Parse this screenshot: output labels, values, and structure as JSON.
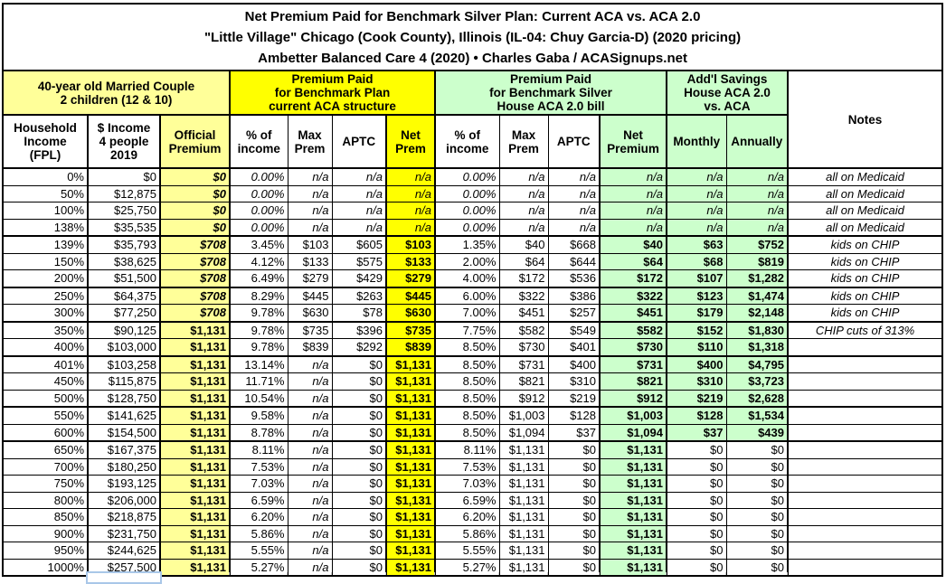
{
  "title": {
    "line1": "Net Premium Paid for Benchmark Silver Plan: Current ACA vs. ACA 2.0",
    "line2": "\"Little Village\" Chicago (Cook County), Illinois (IL-04: Chuy Garcia-D) (2020 pricing)",
    "line3": "Ambetter Balanced Care 4 (2020) • Charles Gaba / ACASignups.net"
  },
  "header": {
    "household_group": "40-year old Married Couple\n2 children (12 & 10)",
    "aca_group": "Premium Paid\nfor Benchmark Plan\ncurrent ACA structure",
    "aca2_group": "Premium Paid\nfor Benchmark Silver\nHouse ACA 2.0 bill",
    "savings_group": "Add'l Savings\nHouse ACA 2.0\nvs. ACA",
    "notes_label": "Notes",
    "columns": [
      "Household\nIncome\n(FPL)",
      "$ Income\n4 people\n2019",
      "Official\nPremium",
      "% of\nincome",
      "Max\nPrem",
      "APTC",
      "Net\nPrem",
      "% of\nincome",
      "Max\nPrem",
      "APTC",
      "Net\nPremium",
      "Monthly",
      "Annually"
    ]
  },
  "colors": {
    "bright_yellow": "#FFFF00",
    "light_yellow": "#FFFF99",
    "light_green": "#CCFFCC",
    "grid_black": "#000000",
    "selection_blue": "#A9C7E8"
  },
  "rows": [
    {
      "fpl": "0%",
      "income": "$0",
      "official": "$0",
      "officialItalic": true,
      "aca": [
        "0.00%",
        "n/a",
        "n/a",
        "n/a"
      ],
      "aca2": [
        "0.00%",
        "n/a",
        "n/a",
        "n/a"
      ],
      "monthly": "n/a",
      "annually": "n/a",
      "note": "all on Medicaid"
    },
    {
      "fpl": "50%",
      "income": "$12,875",
      "official": "$0",
      "officialItalic": true,
      "aca": [
        "0.00%",
        "n/a",
        "n/a",
        "n/a"
      ],
      "aca2": [
        "0.00%",
        "n/a",
        "n/a",
        "n/a"
      ],
      "monthly": "n/a",
      "annually": "n/a",
      "note": "all on Medicaid"
    },
    {
      "fpl": "100%",
      "income": "$25,750",
      "official": "$0",
      "officialItalic": true,
      "aca": [
        "0.00%",
        "n/a",
        "n/a",
        "n/a"
      ],
      "aca2": [
        "0.00%",
        "n/a",
        "n/a",
        "n/a"
      ],
      "monthly": "n/a",
      "annually": "n/a",
      "note": "all on Medicaid"
    },
    {
      "fpl": "138%",
      "income": "$35,535",
      "official": "$0",
      "officialItalic": true,
      "aca": [
        "0.00%",
        "n/a",
        "n/a",
        "n/a"
      ],
      "aca2": [
        "0.00%",
        "n/a",
        "n/a",
        "n/a"
      ],
      "monthly": "n/a",
      "annually": "n/a",
      "note": "all on Medicaid",
      "thickBottom": true
    },
    {
      "fpl": "139%",
      "income": "$35,793",
      "official": "$708",
      "officialItalic": true,
      "aca": [
        "3.45%",
        "$103",
        "$605",
        "$103"
      ],
      "aca2": [
        "1.35%",
        "$40",
        "$668",
        "$40"
      ],
      "monthly": "$63",
      "annually": "$752",
      "note": "kids on CHIP"
    },
    {
      "fpl": "150%",
      "income": "$38,625",
      "official": "$708",
      "officialItalic": true,
      "aca": [
        "4.12%",
        "$133",
        "$575",
        "$133"
      ],
      "aca2": [
        "2.00%",
        "$64",
        "$644",
        "$64"
      ],
      "monthly": "$68",
      "annually": "$819",
      "note": "kids on CHIP"
    },
    {
      "fpl": "200%",
      "income": "$51,500",
      "official": "$708",
      "officialItalic": true,
      "aca": [
        "6.49%",
        "$279",
        "$429",
        "$279"
      ],
      "aca2": [
        "4.00%",
        "$172",
        "$536",
        "$172"
      ],
      "monthly": "$107",
      "annually": "$1,282",
      "note": "kids on CHIP",
      "thickBottom": true
    },
    {
      "fpl": "250%",
      "income": "$64,375",
      "official": "$708",
      "officialItalic": true,
      "aca": [
        "8.29%",
        "$445",
        "$263",
        "$445"
      ],
      "aca2": [
        "6.00%",
        "$322",
        "$386",
        "$322"
      ],
      "monthly": "$123",
      "annually": "$1,474",
      "note": "kids on CHIP"
    },
    {
      "fpl": "300%",
      "income": "$77,250",
      "official": "$708",
      "officialItalic": true,
      "aca": [
        "9.78%",
        "$630",
        "$78",
        "$630"
      ],
      "aca2": [
        "7.00%",
        "$451",
        "$257",
        "$451"
      ],
      "monthly": "$179",
      "annually": "$2,148",
      "note": "kids on CHIP",
      "thickBottom": true
    },
    {
      "fpl": "350%",
      "income": "$90,125",
      "official": "$1,131",
      "aca": [
        "9.78%",
        "$735",
        "$396",
        "$735"
      ],
      "aca2": [
        "7.75%",
        "$582",
        "$549",
        "$582"
      ],
      "monthly": "$152",
      "annually": "$1,830",
      "note": "CHIP cuts of 313%"
    },
    {
      "fpl": "400%",
      "income": "$103,000",
      "official": "$1,131",
      "aca": [
        "9.78%",
        "$839",
        "$292",
        "$839"
      ],
      "aca2": [
        "8.50%",
        "$730",
        "$401",
        "$730"
      ],
      "monthly": "$110",
      "annually": "$1,318",
      "note": "",
      "thickBottom": true
    },
    {
      "fpl": "401%",
      "income": "$103,258",
      "official": "$1,131",
      "aca": [
        "13.14%",
        "n/a",
        "$0",
        "$1,131"
      ],
      "aca2": [
        "8.50%",
        "$731",
        "$400",
        "$731"
      ],
      "monthly": "$400",
      "annually": "$4,795",
      "note": ""
    },
    {
      "fpl": "450%",
      "income": "$115,875",
      "official": "$1,131",
      "aca": [
        "11.71%",
        "n/a",
        "$0",
        "$1,131"
      ],
      "aca2": [
        "8.50%",
        "$821",
        "$310",
        "$821"
      ],
      "monthly": "$310",
      "annually": "$3,723",
      "note": ""
    },
    {
      "fpl": "500%",
      "income": "$128,750",
      "official": "$1,131",
      "aca": [
        "10.54%",
        "n/a",
        "$0",
        "$1,131"
      ],
      "aca2": [
        "8.50%",
        "$912",
        "$219",
        "$912"
      ],
      "monthly": "$219",
      "annually": "$2,628",
      "note": "",
      "thickBottom": true
    },
    {
      "fpl": "550%",
      "income": "$141,625",
      "official": "$1,131",
      "aca": [
        "9.58%",
        "n/a",
        "$0",
        "$1,131"
      ],
      "aca2": [
        "8.50%",
        "$1,003",
        "$128",
        "$1,003"
      ],
      "monthly": "$128",
      "annually": "$1,534",
      "note": ""
    },
    {
      "fpl": "600%",
      "income": "$154,500",
      "official": "$1,131",
      "aca": [
        "8.78%",
        "n/a",
        "$0",
        "$1,131"
      ],
      "aca2": [
        "8.50%",
        "$1,094",
        "$37",
        "$1,094"
      ],
      "monthly": "$37",
      "annually": "$439",
      "note": "",
      "thickBottom": true
    },
    {
      "fpl": "650%",
      "income": "$167,375",
      "official": "$1,131",
      "aca": [
        "8.11%",
        "n/a",
        "$0",
        "$1,131"
      ],
      "aca2": [
        "8.11%",
        "$1,131",
        "$0",
        "$1,131"
      ],
      "monthly": "$0",
      "annually": "$0",
      "note": "",
      "plainSavings": true
    },
    {
      "fpl": "700%",
      "income": "$180,250",
      "official": "$1,131",
      "aca": [
        "7.53%",
        "n/a",
        "$0",
        "$1,131"
      ],
      "aca2": [
        "7.53%",
        "$1,131",
        "$0",
        "$1,131"
      ],
      "monthly": "$0",
      "annually": "$0",
      "note": "",
      "plainSavings": true
    },
    {
      "fpl": "750%",
      "income": "$193,125",
      "official": "$1,131",
      "aca": [
        "7.03%",
        "n/a",
        "$0",
        "$1,131"
      ],
      "aca2": [
        "7.03%",
        "$1,131",
        "$0",
        "$1,131"
      ],
      "monthly": "$0",
      "annually": "$0",
      "note": "",
      "plainSavings": true
    },
    {
      "fpl": "800%",
      "income": "$206,000",
      "official": "$1,131",
      "aca": [
        "6.59%",
        "n/a",
        "$0",
        "$1,131"
      ],
      "aca2": [
        "6.59%",
        "$1,131",
        "$0",
        "$1,131"
      ],
      "monthly": "$0",
      "annually": "$0",
      "note": "",
      "plainSavings": true
    },
    {
      "fpl": "850%",
      "income": "$218,875",
      "official": "$1,131",
      "aca": [
        "6.20%",
        "n/a",
        "$0",
        "$1,131"
      ],
      "aca2": [
        "6.20%",
        "$1,131",
        "$0",
        "$1,131"
      ],
      "monthly": "$0",
      "annually": "$0",
      "note": "",
      "plainSavings": true
    },
    {
      "fpl": "900%",
      "income": "$231,750",
      "official": "$1,131",
      "aca": [
        "5.86%",
        "n/a",
        "$0",
        "$1,131"
      ],
      "aca2": [
        "5.86%",
        "$1,131",
        "$0",
        "$1,131"
      ],
      "monthly": "$0",
      "annually": "$0",
      "note": "",
      "plainSavings": true
    },
    {
      "fpl": "950%",
      "income": "$244,625",
      "official": "$1,131",
      "aca": [
        "5.55%",
        "n/a",
        "$0",
        "$1,131"
      ],
      "aca2": [
        "5.55%",
        "$1,131",
        "$0",
        "$1,131"
      ],
      "monthly": "$0",
      "annually": "$0",
      "note": "",
      "plainSavings": true
    },
    {
      "fpl": "1000%",
      "income": "$257,500",
      "official": "$1,131",
      "aca": [
        "5.27%",
        "n/a",
        "$0",
        "$1,131"
      ],
      "aca2": [
        "5.27%",
        "$1,131",
        "$0",
        "$1,131"
      ],
      "monthly": "$0",
      "annually": "$0",
      "note": "",
      "plainSavings": true
    }
  ]
}
